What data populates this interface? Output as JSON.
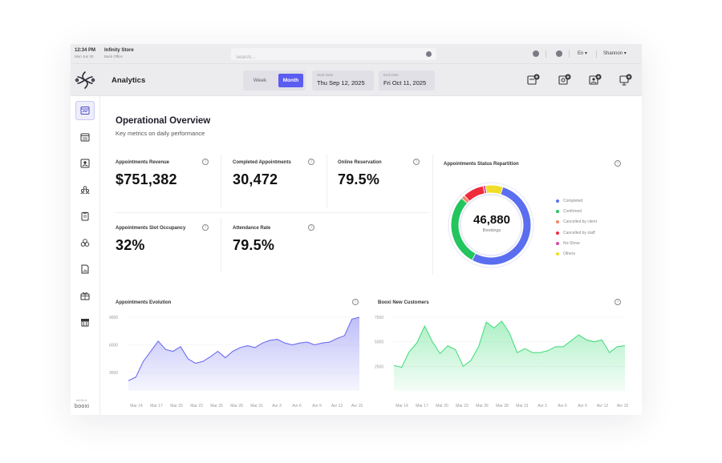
{
  "system_bar": {
    "time": "12:34 PM",
    "date": "Mon Jun 30",
    "store_name": "Infinity Store",
    "store_sub": "Back Office",
    "search_placeholder": "Search...",
    "language": "En ▾",
    "user": "Shannon ▾"
  },
  "header": {
    "title": "Analytics",
    "period_options": [
      "Week",
      "Month"
    ],
    "selected_period": "Month",
    "start_date_label": "Start Date",
    "start_date": "Thu Sep 12, 2025",
    "end_date_label": "End Date",
    "end_date": "Fri Oct 11, 2025",
    "action_icons": [
      "add-event-icon",
      "add-search-icon",
      "add-customer-icon",
      "add-display-icon"
    ]
  },
  "sidebar": {
    "items": [
      "dashboard-icon",
      "calendar-icon",
      "customer-card-icon",
      "users-icon",
      "clipboard-icon",
      "groups-icon",
      "report-icon",
      "gift-icon",
      "store-icon"
    ],
    "active_index": 0,
    "version": "v6.00.4",
    "brand": "booxi"
  },
  "overview": {
    "title": "Operational Overview",
    "subtitle": "Key metrics on daily performance"
  },
  "kpis": [
    {
      "label": "Appointments Revenue",
      "value": "$751,382"
    },
    {
      "label": "Completed Appointments",
      "value": "30,472"
    },
    {
      "label": "Online Reservation",
      "value": "79.5%"
    },
    {
      "label": "Appointments Slot Occupancy",
      "value": "32%"
    },
    {
      "label": "Attendance Rate",
      "value": "79.5%"
    }
  ],
  "status_repartition": {
    "title": "Appointments Status Repartition",
    "total": "46,880",
    "total_label": "Bookings",
    "legend": [
      {
        "label": "Completed",
        "color": "#5b6ef0"
      },
      {
        "label": "Confirmed",
        "color": "#22c55e"
      },
      {
        "label": "Cancelled by client",
        "color": "#f3866a"
      },
      {
        "label": "Cancelled by staff",
        "color": "#ef2a3a"
      },
      {
        "label": "No-Show",
        "color": "#d946a8"
      },
      {
        "label": "Others",
        "color": "#f0dd2a"
      }
    ]
  },
  "chart_data": [
    {
      "type": "area",
      "title": "Appointments Evolution",
      "ylim": [
        1000,
        9000
      ],
      "yticks": [
        3000,
        6000,
        9000
      ],
      "xticks": [
        "Mar 14",
        "Mar 17",
        "Mar 20",
        "Mar 23",
        "Mar 25",
        "Mar 28",
        "Mar 31",
        "Avr 3",
        "Avr 6",
        "Avr 9",
        "Avr 12",
        "Avr 15"
      ],
      "color": "#6f6ff0",
      "values": [
        2100,
        2500,
        4200,
        5300,
        6400,
        5500,
        5300,
        5800,
        4500,
        4000,
        4200,
        4700,
        5300,
        4600,
        5300,
        5700,
        5900,
        5700,
        6200,
        6500,
        6600,
        6200,
        6000,
        6200,
        6300,
        6000,
        6200,
        6300,
        6700,
        7000,
        8800,
        9000
      ]
    },
    {
      "type": "area",
      "title": "Booxi New Customers",
      "ylim": [
        0,
        7500
      ],
      "yticks": [
        2500,
        5000,
        7500
      ],
      "xticks": [
        "Mar 14",
        "Mar 17",
        "Mar 20",
        "Mar 23",
        "Mar 26",
        "Mar 28",
        "Mar 31",
        "Avr 3",
        "Avr 6",
        "Avr 9",
        "Avr 12",
        "Avr 15"
      ],
      "color": "#4ade80",
      "values": [
        2600,
        2400,
        4000,
        4900,
        6600,
        5000,
        3800,
        4600,
        4200,
        2500,
        3100,
        4500,
        7000,
        6400,
        7100,
        5900,
        3900,
        4300,
        3900,
        3900,
        4100,
        4500,
        4500,
        5100,
        5700,
        5200,
        5000,
        5200,
        3900,
        4500,
        4600
      ]
    }
  ]
}
